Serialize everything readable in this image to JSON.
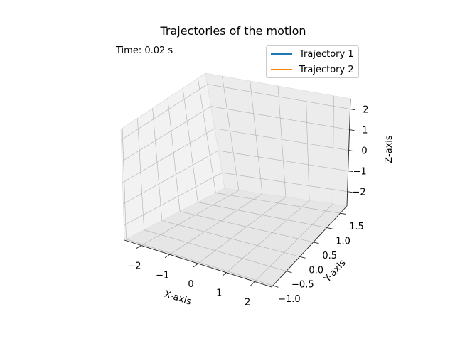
{
  "chart_data": {
    "type": "line",
    "projection": "3d",
    "title": "Trajectories of the motion",
    "annotation": "Time: 0.02 s",
    "xlabel": "X-axis",
    "ylabel": "Y-axis",
    "zlabel": "Z-axis",
    "xlim": [
      -2.6,
      2.6
    ],
    "ylim": [
      -1.05,
      1.75
    ],
    "zlim": [
      -2.7,
      2.5
    ],
    "xticks": [
      "−2",
      "−1",
      "0",
      "1",
      "2"
    ],
    "yticks": [
      "−1.0",
      "−0.5",
      "0.0",
      "0.5",
      "1.0",
      "1.5"
    ],
    "zticks": [
      "−2",
      "−1",
      "0",
      "1",
      "2"
    ],
    "grid": true,
    "legend_position": "top-right",
    "series": [
      {
        "name": "Trajectory 1",
        "color": "#1f77b4",
        "points": []
      },
      {
        "name": "Trajectory 2",
        "color": "#ff7f0e",
        "points": []
      }
    ]
  }
}
